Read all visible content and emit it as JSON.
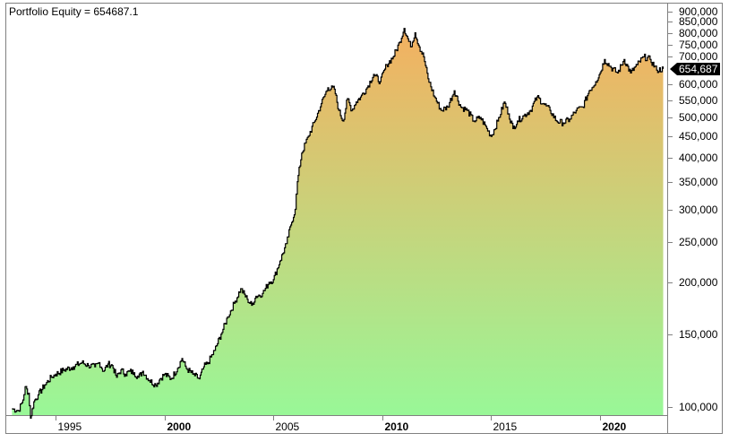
{
  "title": "Portfolio Equity = 654687.1",
  "last_value_label": "654,687",
  "colors": {
    "fill_top": "#F4B060",
    "fill_bottom": "#98F898",
    "line": "#000000",
    "frame": "#808080",
    "badge_bg": "#000000",
    "badge_text": "#FFFFFF"
  },
  "y_axis": {
    "ticks": [
      {
        "label": "900,000",
        "value": 900000
      },
      {
        "label": "850,000",
        "value": 850000
      },
      {
        "label": "800,000",
        "value": 800000
      },
      {
        "label": "750,000",
        "value": 750000
      },
      {
        "label": "700,000",
        "value": 700000
      },
      {
        "label": "600,000",
        "value": 600000
      },
      {
        "label": "550,000",
        "value": 550000
      },
      {
        "label": "500,000",
        "value": 500000
      },
      {
        "label": "450,000",
        "value": 450000
      },
      {
        "label": "400,000",
        "value": 400000
      },
      {
        "label": "350,000",
        "value": 350000
      },
      {
        "label": "300,000",
        "value": 300000
      },
      {
        "label": "250,000",
        "value": 250000
      },
      {
        "label": "200,000",
        "value": 200000
      },
      {
        "label": "150,000",
        "value": 150000
      },
      {
        "label": "100,000",
        "value": 100000
      }
    ]
  },
  "x_axis": {
    "ticks": [
      {
        "label": "1995",
        "year": 1995,
        "bold": false
      },
      {
        "label": "2000",
        "year": 2000,
        "bold": true
      },
      {
        "label": "2005",
        "year": 2005,
        "bold": false
      },
      {
        "label": "2010",
        "year": 2010,
        "bold": true
      },
      {
        "label": "2015",
        "year": 2015,
        "bold": false
      },
      {
        "label": "2020",
        "year": 2020,
        "bold": true
      }
    ]
  },
  "chart_data": {
    "type": "area",
    "title": "Portfolio Equity = 654687.1",
    "xlabel": "",
    "ylabel": "",
    "y_scale": "log",
    "ylim": [
      92000,
      920000
    ],
    "xlim": [
      1993.0,
      2022.9
    ],
    "grid": false,
    "legend": "none",
    "last_value": 654687.1,
    "series": [
      {
        "name": "Portfolio Equity",
        "x": [
          1993.0,
          1993.3,
          1993.5,
          1993.6,
          1993.75,
          1993.85,
          1994.0,
          1994.2,
          1994.5,
          1994.8,
          1995.0,
          1995.4,
          1995.8,
          1996.2,
          1996.5,
          1996.8,
          1997.0,
          1997.2,
          1997.4,
          1997.6,
          1997.8,
          1998.0,
          1998.2,
          1998.4,
          1998.6,
          1998.8,
          1999.0,
          1999.3,
          1999.6,
          1999.8,
          2000.0,
          2000.3,
          2000.6,
          2000.8,
          2001.0,
          2001.3,
          2001.6,
          2001.8,
          2002.0,
          2002.3,
          2002.6,
          2002.9,
          2003.2,
          2003.5,
          2003.8,
          2004.0,
          2004.2,
          2004.5,
          2004.8,
          2005.0,
          2005.3,
          2005.6,
          2005.8,
          2006.0,
          2006.1,
          2006.3,
          2006.6,
          2006.9,
          2007.2,
          2007.5,
          2007.8,
          2008.0,
          2008.2,
          2008.4,
          2008.6,
          2008.8,
          2009.0,
          2009.3,
          2009.6,
          2009.9,
          2010.2,
          2010.5,
          2010.8,
          2011.0,
          2011.3,
          2011.5,
          2011.7,
          2011.9,
          2012.1,
          2012.4,
          2012.7,
          2013.0,
          2013.3,
          2013.6,
          2013.9,
          2014.2,
          2014.5,
          2014.8,
          2015.0,
          2015.3,
          2015.6,
          2015.8,
          2016.0,
          2016.2,
          2016.5,
          2016.8,
          2017.1,
          2017.4,
          2017.7,
          2018.0,
          2018.3,
          2018.6,
          2018.9,
          2019.2,
          2019.5,
          2019.8,
          2020.0,
          2020.2,
          2020.5,
          2020.8,
          2021.1,
          2021.4,
          2021.7,
          2022.0,
          2022.3,
          2022.6,
          2022.9
        ],
        "values": [
          99000,
          98000,
          104000,
          112000,
          108000,
          94000,
          103000,
          107000,
          113000,
          118000,
          120000,
          123000,
          125000,
          128000,
          126000,
          125000,
          128000,
          122000,
          127000,
          126000,
          118000,
          123000,
          120000,
          122000,
          121000,
          118000,
          122000,
          116000,
          113000,
          117000,
          120000,
          117000,
          124000,
          131000,
          124000,
          120000,
          117000,
          125000,
          128000,
          137000,
          150000,
          165000,
          178000,
          193000,
          182000,
          176000,
          185000,
          188000,
          200000,
          203000,
          225000,
          248000,
          275000,
          300000,
          350000,
          410000,
          450000,
          490000,
          540000,
          590000,
          585000,
          520000,
          490000,
          555000,
          520000,
          545000,
          560000,
          590000,
          635000,
          610000,
          670000,
          700000,
          760000,
          820000,
          740000,
          800000,
          740000,
          700000,
          620000,
          560000,
          520000,
          530000,
          580000,
          530000,
          520000,
          490000,
          500000,
          470000,
          450000,
          490000,
          545000,
          510000,
          470000,
          490000,
          505000,
          520000,
          560000,
          540000,
          520000,
          490000,
          485000,
          495000,
          520000,
          530000,
          580000,
          610000,
          640000,
          690000,
          660000,
          640000,
          690000,
          640000,
          670000,
          700000,
          690000,
          650000,
          654687
        ]
      }
    ]
  }
}
